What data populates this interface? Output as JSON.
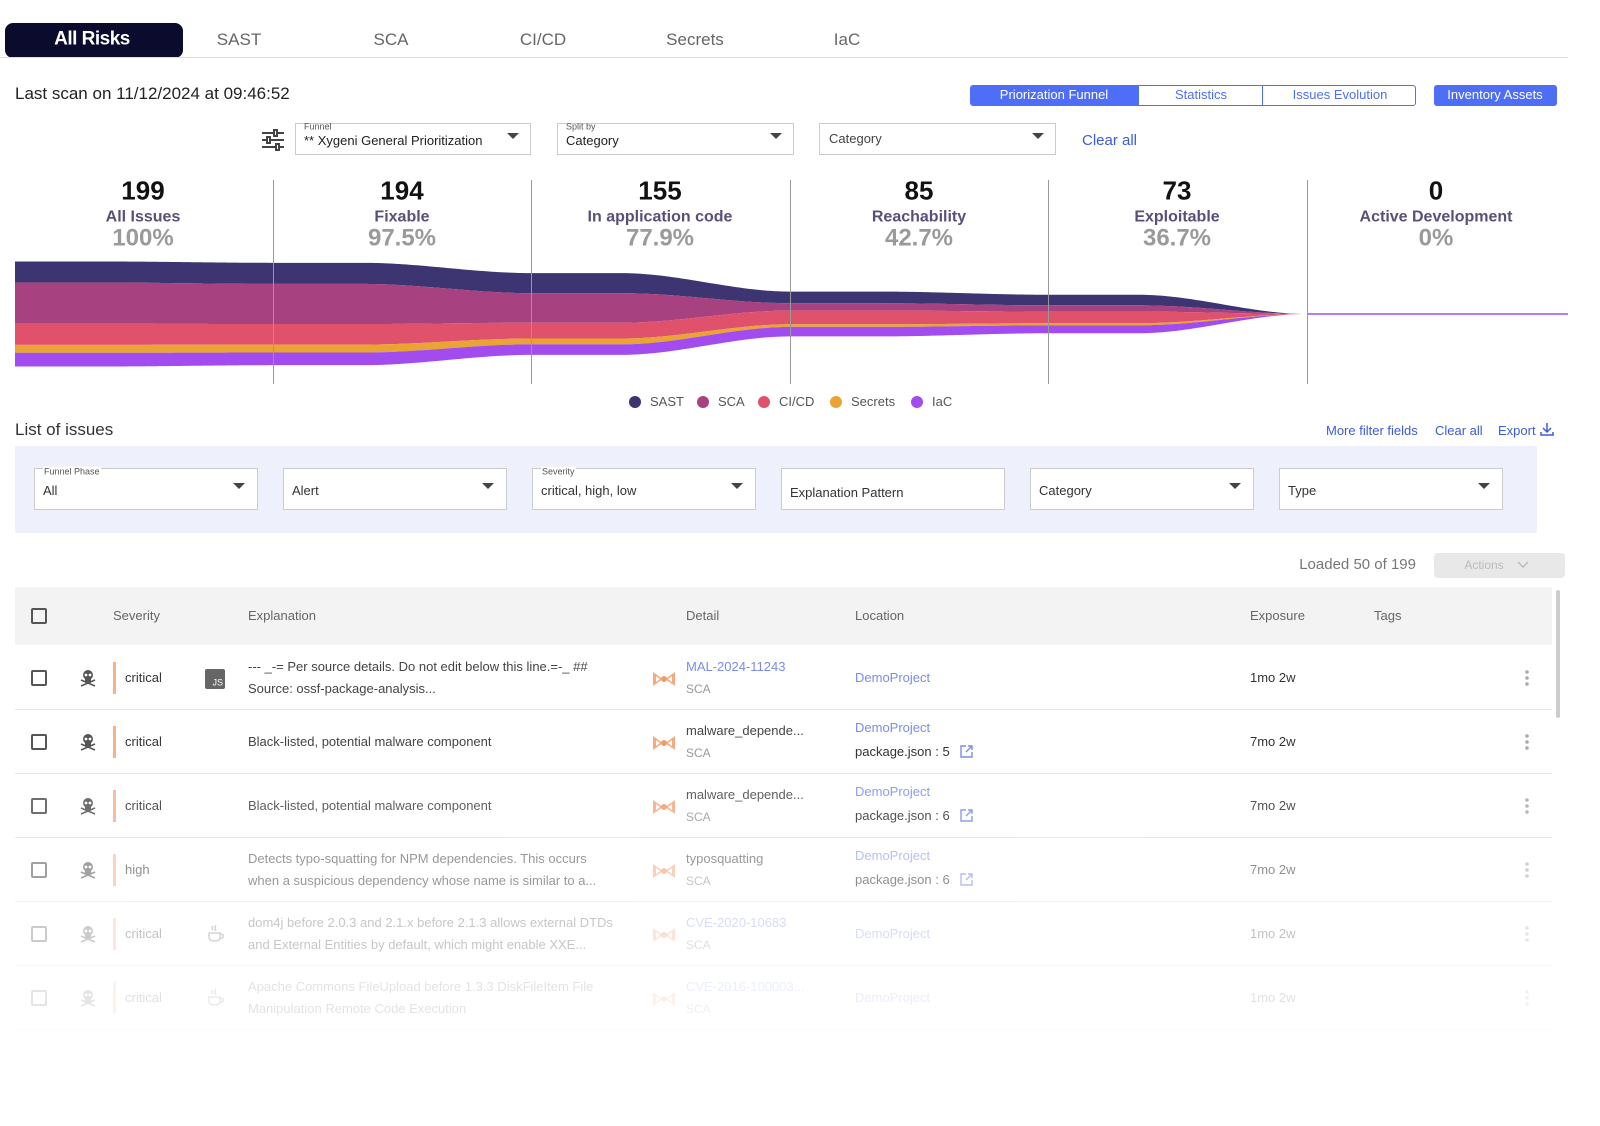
{
  "tabs": [
    "All Risks",
    "SAST",
    "SCA",
    "CI/CD",
    "Secrets",
    "IaC"
  ],
  "last_scan": "Last scan on 11/12/2024 at 09:46:52",
  "view_buttons": [
    "Priorization Funnel",
    "Statistics",
    "Issues Evolution"
  ],
  "inventory_button": "Inventory Assets",
  "filters": {
    "funnel": {
      "label": "Funnel",
      "value": "** Xygeni General Prioritization"
    },
    "split_by": {
      "label": "Split by",
      "value": "Category"
    },
    "category": "Category",
    "clear_all": "Clear all"
  },
  "chart_data": {
    "type": "funnel",
    "categories": [
      "All Issues",
      "Fixable",
      "In application code",
      "Reachability",
      "Exploitable",
      "Active Development"
    ],
    "values": [
      199,
      194,
      155,
      85,
      73,
      0
    ],
    "value_labels": [
      "199",
      "194",
      "155",
      "85",
      "73",
      "0"
    ],
    "percent_labels": [
      "100%",
      "97.5%",
      "77.9%",
      "42.7%",
      "36.7%",
      "0%"
    ],
    "series": [
      {
        "name": "SAST",
        "color": "#3d3472",
        "values": [
          40,
          40,
          38,
          22,
          20,
          0
        ]
      },
      {
        "name": "SCA",
        "color": "#a8417f",
        "values": [
          78,
          76,
          56,
          14,
          12,
          0
        ]
      },
      {
        "name": "CI/CD",
        "color": "#e0526b",
        "values": [
          40,
          39,
          30,
          26,
          22,
          0
        ]
      },
      {
        "name": "Secrets",
        "color": "#e9a434",
        "values": [
          15,
          15,
          11,
          5,
          4,
          0
        ]
      },
      {
        "name": "IaC",
        "color": "#a24cf0",
        "values": [
          26,
          24,
          20,
          18,
          15,
          0
        ]
      }
    ]
  },
  "issues": {
    "title": "List of issues",
    "links": [
      "More filter fields",
      "Clear all",
      "Export"
    ],
    "filters": [
      {
        "label": "Funnel Phase",
        "value": "All"
      },
      {
        "value": "Alert"
      },
      {
        "label": "Severity",
        "value": "critical, high, low"
      },
      {
        "value": "Explanation Pattern"
      },
      {
        "value": "Category"
      },
      {
        "value": "Type"
      }
    ],
    "loaded": "Loaded 50 of 199",
    "actions": "Actions",
    "columns": [
      "Severity",
      "Explanation",
      "Detail",
      "Location",
      "Exposure",
      "Tags"
    ],
    "rows": [
      {
        "severity": "critical",
        "lang_badge": "JS",
        "explanation": [
          "--- _-= Per source details. Do not edit below this line.=-_ ##",
          "Source: ossf-package-analysis..."
        ],
        "detail": "MAL-2024-11243",
        "detail_sub": "SCA",
        "location": "DemoProject",
        "exposure": "1mo 2w"
      },
      {
        "severity": "critical",
        "explanation": [
          "Black-listed, potential malware component"
        ],
        "detail": "malware_depende...",
        "detail_sub": "SCA",
        "location": "DemoProject",
        "file": "package.json : 5",
        "exposure": "7mo 2w"
      },
      {
        "severity": "critical",
        "explanation": [
          "Black-listed, potential malware component"
        ],
        "detail": "malware_depende...",
        "detail_sub": "SCA",
        "location": "DemoProject",
        "file": "package.json : 6",
        "exposure": "7mo 2w"
      },
      {
        "severity": "high",
        "explanation": [
          "Detects typo-squatting for NPM dependencies. This occurs",
          "when a suspicious dependency whose name is similar to a..."
        ],
        "detail": "typosquatting",
        "detail_sub": "SCA",
        "location": "DemoProject",
        "file": "package.json : 6",
        "exposure": "7mo 2w"
      },
      {
        "severity": "critical",
        "icon": "java",
        "explanation": [
          "dom4j before 2.0.3 and 2.1.x before 2.1.3 allows external DTDs",
          "and External Entities by default, which might enable XXE..."
        ],
        "detail": "CVE-2020-10683",
        "detail_sub": "SCA",
        "location": "DemoProject",
        "exposure": "1mo 2w"
      },
      {
        "severity": "critical",
        "icon": "java",
        "explanation": [
          "Apache Commons FileUpload before 1.3.3 DiskFileItem File",
          "Manipulation Remote Code Execution"
        ],
        "detail": "CVE-2016-100003...",
        "detail_sub": "SCA",
        "location": "DemoProject",
        "exposure": "1mo 2w"
      }
    ]
  }
}
